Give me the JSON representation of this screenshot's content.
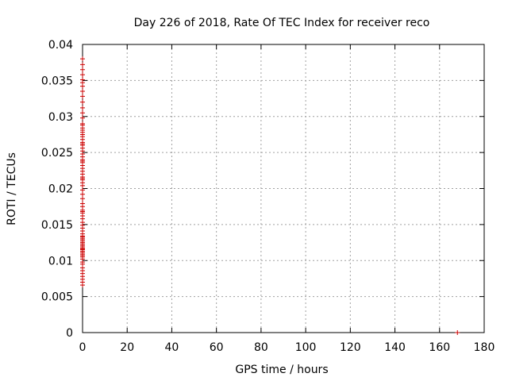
{
  "chart_data": {
    "type": "scatter",
    "title": "Day 226 of 2018, Rate Of TEC Index for receiver reco",
    "xlabel": "GPS time / hours",
    "ylabel": "ROTI / TECUs",
    "xlim": [
      0,
      180
    ],
    "ylim": [
      0,
      0.04
    ],
    "xticks": [
      0,
      20,
      40,
      60,
      80,
      100,
      120,
      140,
      160,
      180
    ],
    "yticks": [
      0,
      0.005,
      0.01,
      0.015,
      0.02,
      0.025,
      0.03,
      0.035,
      0.04
    ],
    "xtick_labels": [
      "0",
      "20",
      "40",
      "60",
      "80",
      "100",
      "120",
      "140",
      "160",
      "180"
    ],
    "ytick_labels": [
      "0",
      "0.005",
      "0.01",
      "0.015",
      "0.02",
      "0.025",
      "0.03",
      "0.035",
      "0.04"
    ],
    "grid": true,
    "legend": "none",
    "marker": "plus",
    "marker_color": "#cc0000",
    "series": [
      {
        "x": [
          0,
          0,
          0,
          0,
          0,
          0,
          0,
          0,
          0,
          0,
          0,
          0,
          0,
          0,
          0,
          0,
          0,
          0,
          0,
          0,
          0,
          0,
          0,
          0,
          0,
          0,
          0,
          0,
          0,
          0,
          0,
          0,
          0,
          0,
          0,
          0,
          0,
          0,
          0,
          0,
          0,
          0,
          0,
          0,
          0,
          0,
          0,
          0,
          0,
          0,
          0,
          0,
          0,
          0,
          0,
          0,
          0,
          0,
          0,
          0,
          0,
          0,
          0,
          0,
          0,
          0,
          0,
          0,
          0,
          0,
          0,
          0,
          0,
          0,
          0,
          0,
          0,
          0,
          0,
          0,
          0,
          0,
          168
        ],
        "y": [
          0.038,
          0.0372,
          0.0365,
          0.0358,
          0.0351,
          0.0347,
          0.0342,
          0.0335,
          0.0328,
          0.032,
          0.0312,
          0.0305,
          0.0298,
          0.029,
          0.0284,
          0.0281,
          0.0278,
          0.0275,
          0.0272,
          0.0268,
          0.0264,
          0.026,
          0.0256,
          0.0252,
          0.0248,
          0.0244,
          0.024,
          0.0236,
          0.0232,
          0.0228,
          0.0224,
          0.022,
          0.0216,
          0.0212,
          0.0208,
          0.0204,
          0.0198,
          0.0192,
          0.0186,
          0.0179,
          0.0175,
          0.017,
          0.0166,
          0.0162,
          0.0158,
          0.0153,
          0.0149,
          0.0145,
          0.0141,
          0.0137,
          0.0133,
          0.0131,
          0.0129,
          0.0127,
          0.0125,
          0.0123,
          0.0121,
          0.0119,
          0.0117,
          0.0115,
          0.0113,
          0.0111,
          0.0109,
          0.0107,
          0.0105,
          0.0102,
          0.0098,
          0.0095,
          0.009,
          0.0086,
          0.0082,
          0.0078,
          0.0074,
          0.007,
          0.0066,
          0.0288,
          0.0262,
          0.0238,
          0.0214,
          0.0168,
          0.0134,
          0.0116,
          0.0
        ]
      }
    ]
  }
}
